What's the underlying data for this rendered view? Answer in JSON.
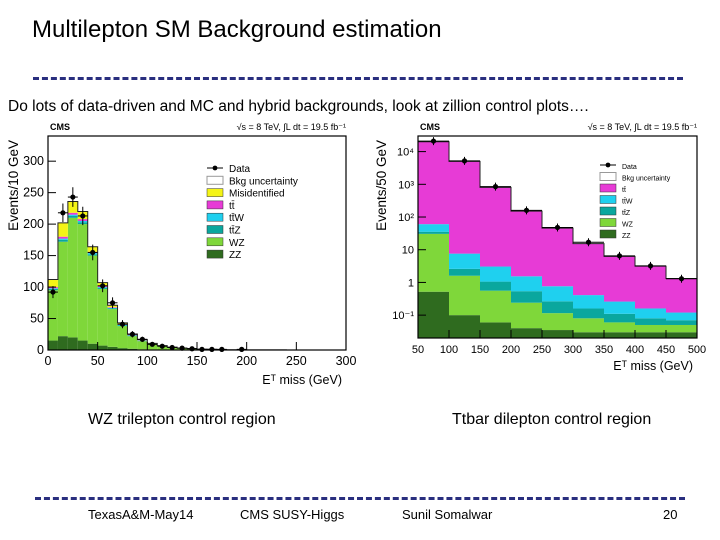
{
  "slide": {
    "title": "Multilepton SM Background estimation",
    "subtitle": "Do lots of data-driven and MC and hybrid backgrounds, look at zillion control plots….",
    "caption_left": "WZ trilepton control region",
    "caption_right": "Ttbar dilepton control region",
    "footer": {
      "left": "TexasA&M-May14",
      "center": "CMS SUSY-Higgs",
      "author": "Sunil Somalwar",
      "page": "20"
    }
  },
  "chart_data": [
    {
      "type": "bar",
      "experiment": "CMS",
      "energy_label": "√s = 8 TeV, ∫L dt = 19.5 fb⁻¹",
      "xlabel": "E_T^miss (GeV)",
      "ylabel": "Events/10 GeV",
      "xlim": [
        0,
        300
      ],
      "ylim": [
        0,
        340
      ],
      "xticks": [
        "0",
        "50",
        "100",
        "150",
        "200",
        "250",
        "300"
      ],
      "yticks": [
        "0",
        "50",
        "100",
        "150",
        "200",
        "250",
        "300"
      ],
      "legend_position": "top-right",
      "legend": [
        "Data",
        "Bkg uncertainty",
        "Misidentified",
        "tt̄",
        "tt̄W",
        "tt̄Z",
        "WZ",
        "ZZ"
      ],
      "bin_edges": [
        0,
        10,
        20,
        30,
        40,
        50,
        60,
        70,
        80,
        90,
        100,
        110,
        120,
        130,
        140,
        150,
        160,
        170,
        180,
        190,
        200,
        210,
        220,
        230,
        240,
        250,
        260,
        270,
        280,
        290,
        300
      ],
      "series": [
        {
          "name": "ZZ",
          "color": "#2f6b1f",
          "values": [
            15,
            22,
            20,
            15,
            10,
            7,
            5,
            3,
            2,
            1,
            1,
            0.5,
            0.5,
            0.3,
            0.3,
            0.2,
            0.2,
            0.1,
            0.1,
            0,
            0,
            0,
            0,
            0,
            0,
            0,
            0,
            0,
            0,
            0
          ]
        },
        {
          "name": "WZ",
          "color": "#7fd73a",
          "values": [
            80,
            150,
            190,
            185,
            140,
            90,
            60,
            35,
            20,
            13,
            8,
            5,
            3,
            2,
            1.5,
            1,
            0.8,
            0.5,
            0.3,
            0.2,
            0.2,
            0.1,
            0.1,
            0.1,
            0,
            0,
            0,
            0,
            0,
            0
          ]
        },
        {
          "name": "tt̄Z",
          "color": "#0aa79e",
          "values": [
            2,
            3,
            3,
            3,
            2,
            2,
            1,
            1,
            1,
            0.5,
            0.5,
            0.3,
            0.3,
            0.2,
            0.2,
            0.1,
            0.1,
            0,
            0,
            0,
            0,
            0,
            0,
            0,
            0,
            0,
            0,
            0,
            0,
            0
          ]
        },
        {
          "name": "tt̄W",
          "color": "#1fd0ef",
          "values": [
            1,
            2,
            2,
            2,
            2,
            1,
            1,
            1,
            0.5,
            0.5,
            0.3,
            0.3,
            0.2,
            0.1,
            0.1,
            0,
            0,
            0,
            0,
            0,
            0,
            0,
            0,
            0,
            0,
            0,
            0,
            0,
            0,
            0
          ]
        },
        {
          "name": "tt̄",
          "color": "#e73bd6",
          "values": [
            2,
            3,
            3,
            3,
            2,
            2,
            1,
            1,
            1,
            0.5,
            0.3,
            0.3,
            0.2,
            0.1,
            0.1,
            0,
            0,
            0,
            0,
            0,
            0,
            0,
            0,
            0,
            0,
            0,
            0,
            0,
            0,
            0
          ]
        },
        {
          "name": "Misidentified",
          "color": "#f4f416",
          "values": [
            12,
            22,
            18,
            12,
            8,
            5,
            3,
            2,
            1,
            1,
            0.5,
            0.5,
            0.3,
            0.2,
            0.1,
            0.1,
            0,
            0,
            0,
            0,
            0,
            0,
            0,
            0,
            0,
            0,
            0,
            0,
            0,
            0
          ]
        }
      ],
      "data_points": [
        {
          "x": 5,
          "y": 92
        },
        {
          "x": 15,
          "y": 218
        },
        {
          "x": 25,
          "y": 243
        },
        {
          "x": 35,
          "y": 213
        },
        {
          "x": 45,
          "y": 155
        },
        {
          "x": 55,
          "y": 102
        },
        {
          "x": 65,
          "y": 75
        },
        {
          "x": 75,
          "y": 41
        },
        {
          "x": 85,
          "y": 25
        },
        {
          "x": 95,
          "y": 17
        },
        {
          "x": 105,
          "y": 9
        },
        {
          "x": 115,
          "y": 6
        },
        {
          "x": 125,
          "y": 4
        },
        {
          "x": 135,
          "y": 3
        },
        {
          "x": 145,
          "y": 2
        },
        {
          "x": 155,
          "y": 1
        },
        {
          "x": 165,
          "y": 1
        },
        {
          "x": 175,
          "y": 1
        },
        {
          "x": 185,
          "y": 0
        },
        {
          "x": 195,
          "y": 1
        },
        {
          "x": 205,
          "y": 0
        },
        {
          "x": 215,
          "y": 0
        },
        {
          "x": 225,
          "y": 0
        },
        {
          "x": 235,
          "y": 0
        },
        {
          "x": 245,
          "y": 0
        },
        {
          "x": 255,
          "y": 0
        },
        {
          "x": 265,
          "y": 0
        },
        {
          "x": 275,
          "y": 0
        },
        {
          "x": 285,
          "y": 0
        },
        {
          "x": 295,
          "y": 0
        }
      ]
    },
    {
      "type": "bar",
      "experiment": "CMS",
      "energy_label": "√s = 8 TeV, ∫L dt = 19.5 fb⁻¹",
      "xlabel": "E_T^miss (GeV)",
      "ylabel": "Events/50 GeV",
      "log_y": true,
      "xlim": [
        50,
        500
      ],
      "ylim": [
        0.02,
        30000
      ],
      "xticks": [
        "50",
        "100",
        "150",
        "200",
        "250",
        "300",
        "350",
        "400",
        "450",
        "500"
      ],
      "yticks": [
        "10⁻¹",
        "1",
        "10",
        "10²",
        "10³",
        "10⁴"
      ],
      "legend_position": "top-right",
      "legend": [
        "Data",
        "Bkg uncertainty",
        "tt̄",
        "tt̄W",
        "tt̄Z",
        "WZ",
        "ZZ"
      ],
      "bin_edges": [
        50,
        100,
        150,
        200,
        250,
        300,
        350,
        400,
        450,
        500
      ],
      "series": [
        {
          "name": "ZZ",
          "color": "#2f6b1f",
          "values": [
            0.5,
            0.08,
            0.04,
            0.02,
            0.015,
            0.01,
            0.01,
            0.01,
            0.01
          ]
        },
        {
          "name": "WZ",
          "color": "#7fd73a",
          "values": [
            30,
            1.5,
            0.5,
            0.2,
            0.08,
            0.05,
            0.03,
            0.02,
            0.02
          ]
        },
        {
          "name": "tt̄Z",
          "color": "#0aa79e",
          "values": [
            5,
            1,
            0.5,
            0.3,
            0.15,
            0.08,
            0.05,
            0.03,
            0.02
          ]
        },
        {
          "name": "tt̄W",
          "color": "#1fd0ef",
          "values": [
            25,
            5,
            2,
            1,
            0.5,
            0.25,
            0.15,
            0.08,
            0.05
          ]
        },
        {
          "name": "tt̄",
          "color": "#e73bd6",
          "values": [
            20000,
            5000,
            800,
            150,
            45,
            15,
            6,
            3,
            1.2
          ]
        }
      ],
      "data_points": [
        {
          "x": 75,
          "y": 21000
        },
        {
          "x": 125,
          "y": 5200
        },
        {
          "x": 175,
          "y": 850
        },
        {
          "x": 225,
          "y": 160
        },
        {
          "x": 275,
          "y": 48
        },
        {
          "x": 325,
          "y": 17
        },
        {
          "x": 375,
          "y": 6.5
        },
        {
          "x": 425,
          "y": 3.2
        },
        {
          "x": 475,
          "y": 1.3
        }
      ]
    }
  ]
}
